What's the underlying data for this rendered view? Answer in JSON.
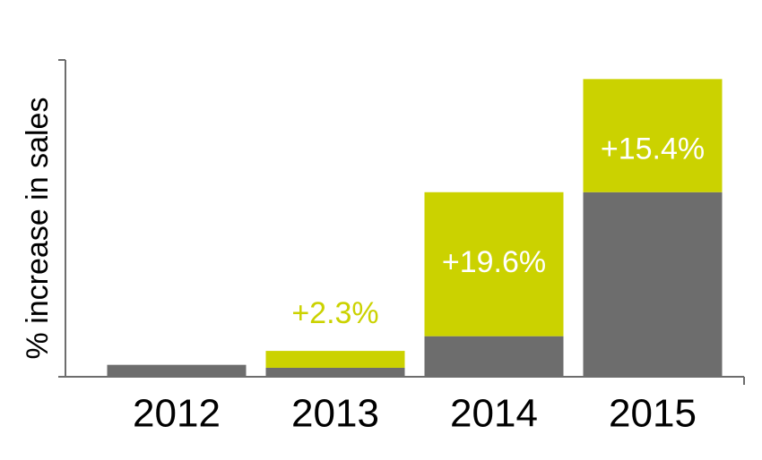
{
  "chart_data": {
    "type": "stacked-bar",
    "y_label": "% increase in sales",
    "categories": [
      "2012",
      "2013",
      "2014",
      "2015"
    ],
    "series": [
      {
        "color": "#6d6d6d",
        "values": [
          1.5,
          1.1,
          5.4,
          25
        ]
      },
      {
        "color": "#cbd200",
        "values": [
          null,
          2.3,
          19.6,
          15.4
        ],
        "value_labels": [
          null,
          "+2.3%",
          "+19.6%",
          "+15.4%"
        ]
      }
    ],
    "ylim": [
      0,
      43
    ]
  }
}
